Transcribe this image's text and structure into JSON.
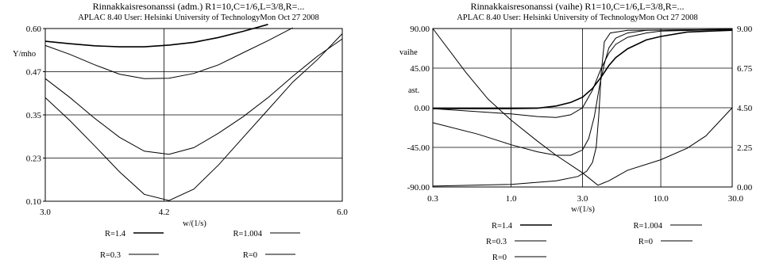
{
  "chart_data": [
    {
      "type": "line",
      "title": "Rinnakkaisresonanssi (adm.) R1=10,C=1/6,L=3/8,R=...",
      "subtitle": "APLAC 8.40 User: Helsinki University of TechnologyMon Oct 27 2008",
      "xlabel": "w/(1/s)",
      "ylabel": "Y/mho",
      "xlim": [
        3.0,
        6.0
      ],
      "ylim": [
        0.1,
        0.6
      ],
      "x_ticks": [
        "3.0",
        "4.2",
        "6.0"
      ],
      "y_ticks": [
        "0.60",
        "0.47",
        "0.35",
        "0.23",
        "0.10"
      ],
      "x_grid": [
        4.2
      ],
      "y_grid": [
        0.475,
        0.35,
        0.225
      ],
      "x": [
        3.0,
        3.25,
        3.5,
        3.75,
        4.0,
        4.25,
        4.5,
        4.75,
        5.0,
        5.25,
        5.5,
        5.75,
        6.0
      ],
      "series": [
        {
          "name": "R=1.4",
          "stroke_width": 1.6,
          "values": [
            0.563,
            0.556,
            0.55,
            0.547,
            0.547,
            0.552,
            0.56,
            0.574,
            0.592,
            0.612,
            null,
            null,
            null
          ]
        },
        {
          "name": "R=1.004",
          "stroke_width": 1.0,
          "values": [
            0.551,
            0.525,
            0.495,
            0.468,
            0.455,
            0.456,
            0.47,
            0.495,
            0.53,
            0.565,
            0.602,
            null,
            null
          ]
        },
        {
          "name": "R=0.3",
          "stroke_width": 1.0,
          "values": [
            0.455,
            0.4,
            0.34,
            0.285,
            0.245,
            0.236,
            0.255,
            0.297,
            0.345,
            0.4,
            0.462,
            0.52,
            0.57
          ]
        },
        {
          "name": "R=0",
          "stroke_width": 1.0,
          "values": [
            0.4,
            0.333,
            0.26,
            0.185,
            0.12,
            0.102,
            0.135,
            0.205,
            0.285,
            0.365,
            0.445,
            0.51,
            0.585
          ]
        }
      ],
      "legend": [
        {
          "label": "R=1.4",
          "stroke_width": 1.6
        },
        {
          "label": "R=1.004",
          "stroke_width": 1.0
        },
        {
          "label": "R=0.3",
          "stroke_width": 1.0
        },
        {
          "label": "R=0",
          "stroke_width": 1.0
        }
      ]
    },
    {
      "type": "line",
      "title": "Rinnakkaisresonanssi (vaihe) R1=10,C=1/6,L=3/8,R=...",
      "subtitle": "APLAC 8.40 User: Helsinki University of TechnologyMon Oct 27 2008",
      "xlabel": "w/(1/s)",
      "ylabel_left": [
        "vaihe",
        "ast."
      ],
      "x_scale": "log",
      "xlim": [
        0.3,
        30.0
      ],
      "ylim": [
        -90.0,
        90.0
      ],
      "ylim_right": [
        0.0,
        9.0
      ],
      "x_ticks": [
        "0.3",
        "1.0",
        "3.0",
        "10.0",
        "30.0"
      ],
      "y_ticks": [
        "90.00",
        "45.00",
        "0.00",
        "-45.00",
        "-90.00"
      ],
      "y_ticks_right": [
        "9.00",
        "6.75",
        "4.50",
        "2.25",
        "0.00"
      ],
      "x_grid": [
        1.0,
        3.0,
        10.0
      ],
      "y_grid": [
        45.0,
        0.0,
        -45.0
      ],
      "series": [
        {
          "name": "R=1.4",
          "axis": "left",
          "stroke_width": 1.6,
          "points": [
            [
              0.3,
              -1
            ],
            [
              1.0,
              -1
            ],
            [
              1.5,
              -0.5
            ],
            [
              2.0,
              2
            ],
            [
              2.5,
              6
            ],
            [
              3.0,
              12
            ],
            [
              3.5,
              22
            ],
            [
              4.0,
              35
            ],
            [
              4.5,
              48
            ],
            [
              5.0,
              57
            ],
            [
              6.0,
              67
            ],
            [
              8.0,
              77
            ],
            [
              10.0,
              81
            ],
            [
              15.0,
              86
            ],
            [
              30.0,
              88
            ]
          ]
        },
        {
          "name": "R=1.004",
          "axis": "left",
          "stroke_width": 1.0,
          "points": [
            [
              0.3,
              -1
            ],
            [
              1.0,
              -7
            ],
            [
              1.5,
              -10
            ],
            [
              2.0,
              -11
            ],
            [
              2.5,
              -8
            ],
            [
              3.0,
              0
            ],
            [
              3.5,
              20
            ],
            [
              4.0,
              45
            ],
            [
              4.5,
              62
            ],
            [
              5.0,
              72
            ],
            [
              6.0,
              80
            ],
            [
              8.0,
              85
            ],
            [
              10.0,
              87
            ],
            [
              30.0,
              89
            ]
          ]
        },
        {
          "name": "R=0.3",
          "axis": "left",
          "stroke_width": 1.0,
          "points": [
            [
              0.3,
              -17
            ],
            [
              0.6,
              -30
            ],
            [
              1.0,
              -42
            ],
            [
              1.5,
              -50
            ],
            [
              2.0,
              -54
            ],
            [
              2.5,
              -54
            ],
            [
              3.0,
              -48
            ],
            [
              3.3,
              -35
            ],
            [
              3.6,
              -10
            ],
            [
              3.9,
              25
            ],
            [
              4.2,
              50
            ],
            [
              4.5,
              68
            ],
            [
              5.0,
              79
            ],
            [
              6.0,
              85
            ],
            [
              8.0,
              88
            ],
            [
              30.0,
              89
            ]
          ]
        },
        {
          "name": "R=0",
          "axis": "left",
          "stroke_width": 1.0,
          "points": [
            [
              0.3,
              -89
            ],
            [
              1.0,
              -87
            ],
            [
              2.0,
              -83
            ],
            [
              2.8,
              -78
            ],
            [
              3.2,
              -72
            ],
            [
              3.5,
              -62
            ],
            [
              3.7,
              -45
            ],
            [
              3.85,
              -10
            ],
            [
              4.0,
              40
            ],
            [
              4.2,
              75
            ],
            [
              4.6,
              85
            ],
            [
              6.0,
              88
            ],
            [
              30.0,
              89
            ]
          ]
        },
        {
          "name": "R=0 (magnitude)",
          "axis": "right",
          "stroke_width": 1.0,
          "points": [
            [
              0.3,
              9.0
            ],
            [
              0.5,
              6.5
            ],
            [
              0.7,
              5.0
            ],
            [
              1.0,
              3.8
            ],
            [
              1.5,
              2.6
            ],
            [
              2.0,
              1.8
            ],
            [
              3.0,
              0.8
            ],
            [
              3.8,
              0.1
            ],
            [
              4.5,
              0.35
            ],
            [
              6.0,
              0.95
            ],
            [
              10.0,
              1.55
            ],
            [
              15.0,
              2.2
            ],
            [
              20.0,
              2.9
            ],
            [
              30.0,
              4.5
            ]
          ]
        }
      ],
      "legend": [
        {
          "label": "R=1.4",
          "stroke_width": 1.6
        },
        {
          "label": "R=1.004",
          "stroke_width": 1.0
        },
        {
          "label": "R=0.3",
          "stroke_width": 1.0
        },
        {
          "label": "R=0",
          "stroke_width": 1.0
        },
        {
          "label": "R=0",
          "stroke_width": 1.0
        }
      ]
    }
  ]
}
